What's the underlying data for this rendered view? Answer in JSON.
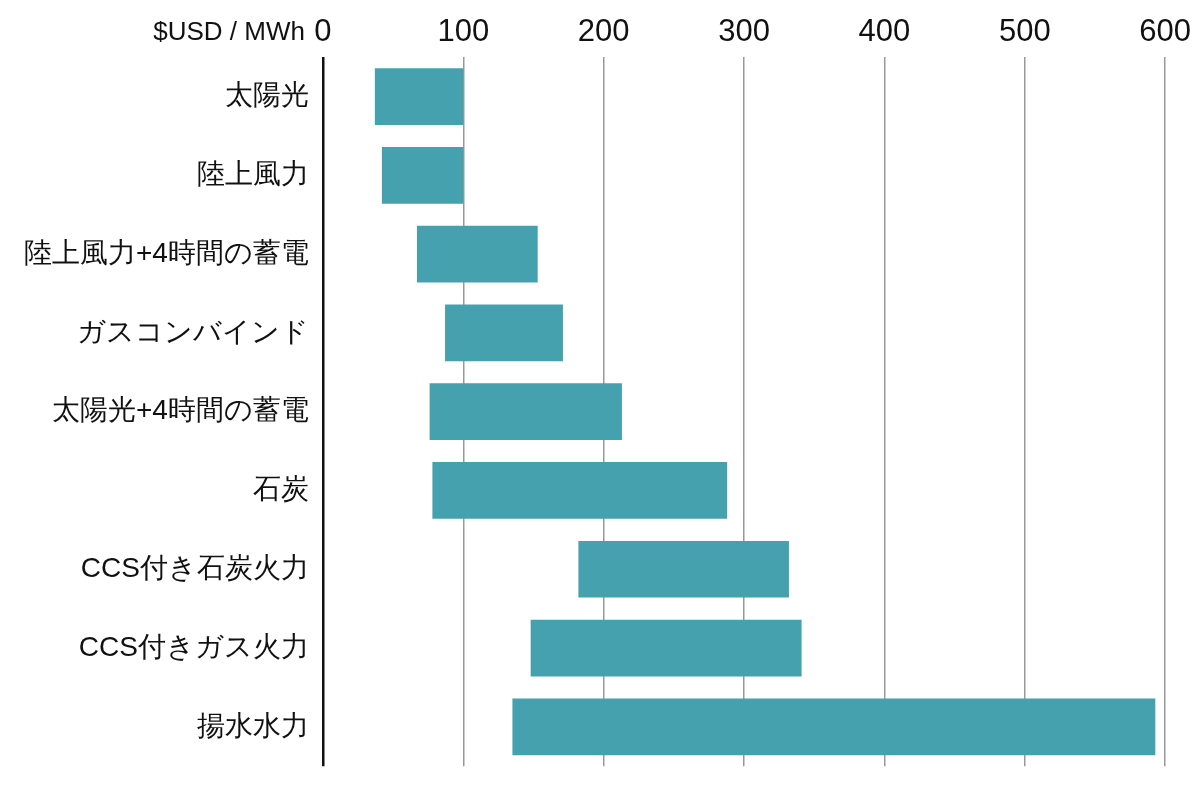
{
  "chart_data": {
    "type": "bar",
    "orientation": "horizontal",
    "xlabel": "$USD / MWh",
    "categories": [
      "太陽光",
      "陸上風力",
      "陸上風力+4時間の蓄電",
      "ガスコンバインド",
      "太陽光+4時間の蓄電",
      "石炭",
      "CCS付き石炭火力",
      "CCS付きガス火力",
      "揚水水力"
    ],
    "base": [
      37,
      42,
      67,
      87,
      76,
      78,
      182,
      148,
      135
    ],
    "values": [
      63,
      58,
      86,
      84,
      137,
      210,
      150,
      193,
      458
    ],
    "color": "#45a1ae",
    "xlim": [
      0,
      600
    ],
    "xticks": [
      0,
      100,
      200,
      300,
      400,
      500,
      600
    ],
    "grid": "x",
    "legend": false
  }
}
